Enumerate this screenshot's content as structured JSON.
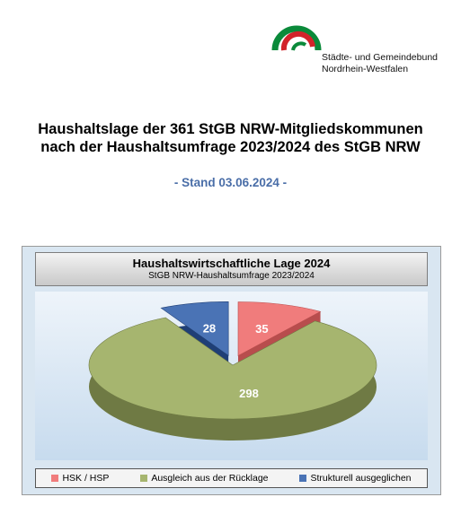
{
  "org": {
    "line1": "Städte- und Gemeindebund",
    "line2": "Nordrhein-Westfalen",
    "logo_colors": {
      "green": "#0a8a3a",
      "red": "#d2232a"
    }
  },
  "report": {
    "title_line1": "Haushaltslage der 361 StGB NRW-Mitgliedskommunen",
    "title_line2": "nach der  Haushaltsumfrage 2023/2024 des StGB NRW",
    "stand": "- Stand 03.06.2024 -"
  },
  "chart_data": {
    "type": "pie",
    "title": "Haushaltswirtschaftliche Lage 2024",
    "subtitle": "StGB NRW-Haushaltsumfrage 2023/2024",
    "style": "3d-exploded",
    "legend_position": "bottom",
    "slices": [
      {
        "label": "HSK / HSP",
        "value": 35,
        "color": "#f07c7c",
        "dark": "#b84d4d"
      },
      {
        "label": "Ausgleich aus der Rücklage",
        "value": 298,
        "color": "#a6b56f",
        "dark": "#6f7a44"
      },
      {
        "label": "Strukturell ausgeglichen",
        "value": 28,
        "color": "#4a73b5",
        "dark": "#1f3f76"
      }
    ]
  }
}
